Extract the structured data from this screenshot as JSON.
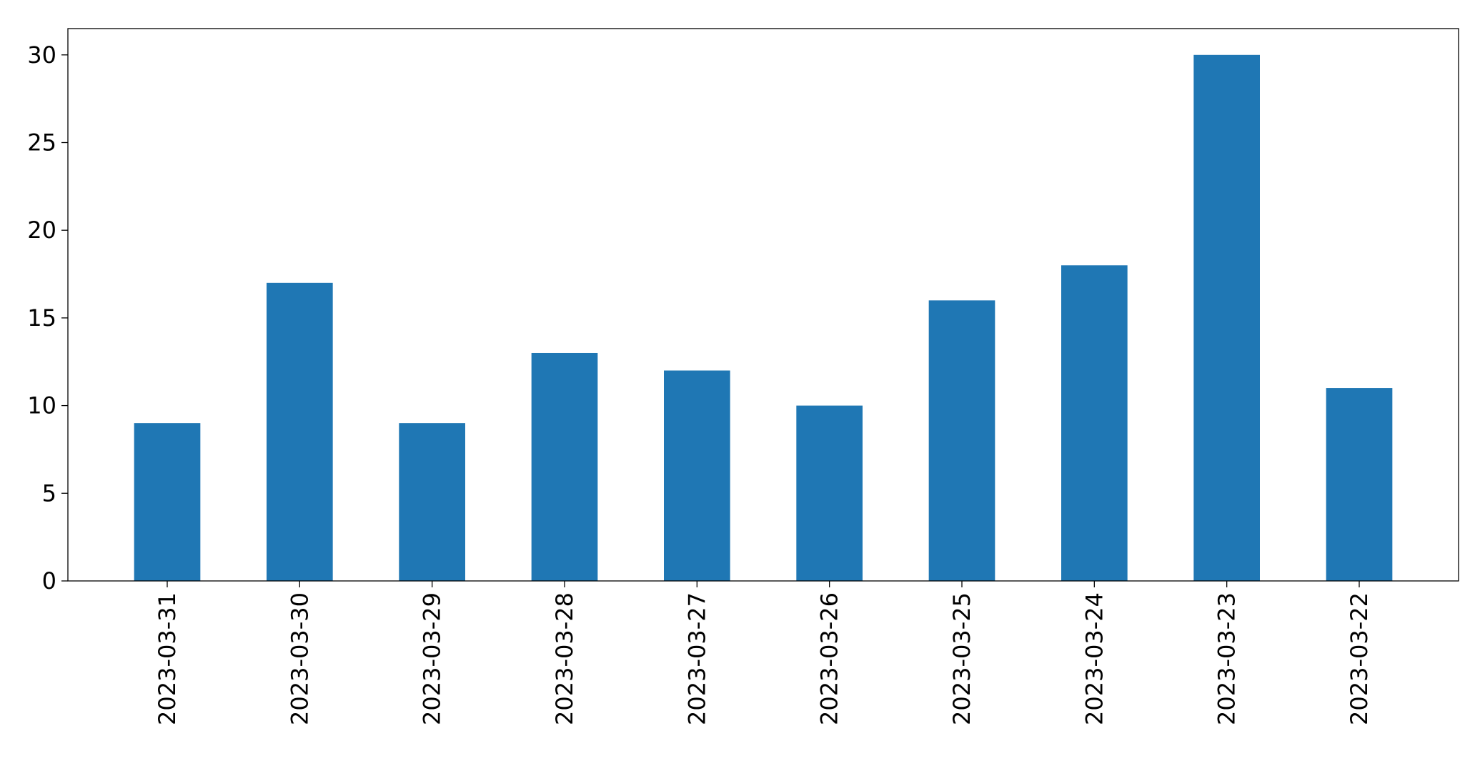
{
  "chart_data": {
    "type": "bar",
    "title": "",
    "xlabel": "",
    "ylabel": "",
    "categories": [
      "2023-03-31",
      "2023-03-30",
      "2023-03-29",
      "2023-03-28",
      "2023-03-27",
      "2023-03-26",
      "2023-03-25",
      "2023-03-24",
      "2023-03-23",
      "2023-03-22"
    ],
    "values": [
      9,
      17,
      9,
      13,
      12,
      10,
      16,
      18,
      30,
      11
    ],
    "ylim": [
      0,
      31.5
    ],
    "yticks": [
      "0",
      "5",
      "10",
      "15",
      "20",
      "25",
      "30"
    ],
    "grid": false,
    "legend": "none",
    "bar_color": "#1f77b4",
    "x_tick_rotation": "vertical"
  }
}
